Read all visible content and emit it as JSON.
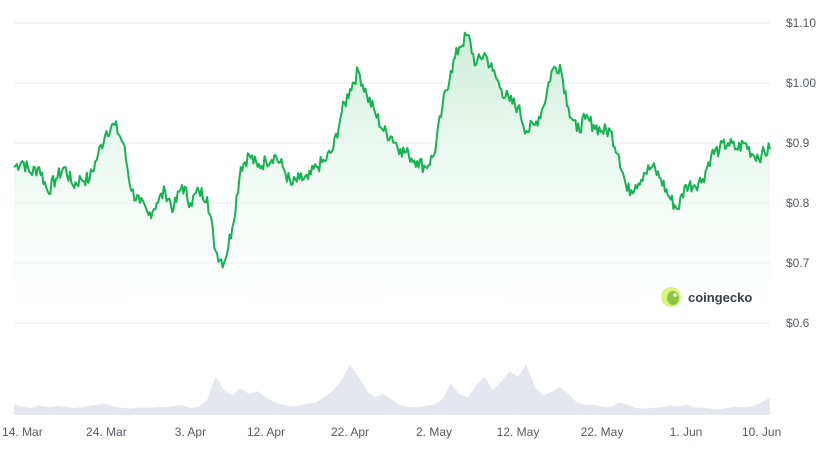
{
  "chart_data": {
    "type": "area",
    "title": "",
    "xlabel": "",
    "ylabel": "",
    "ylim": [
      0.6,
      1.1
    ],
    "grid": true,
    "y_ticks": [
      {
        "value": 1.1,
        "label": "$1.10"
      },
      {
        "value": 1.0,
        "label": "$1.00"
      },
      {
        "value": 0.9,
        "label": "$0.9"
      },
      {
        "value": 0.8,
        "label": "$0.8"
      },
      {
        "value": 0.7,
        "label": "$0.7"
      },
      {
        "value": 0.6,
        "label": "$0.6"
      }
    ],
    "x_ticks": [
      {
        "date": "2024-03-14",
        "label": "14. Mar"
      },
      {
        "date": "2024-03-24",
        "label": "24. Mar"
      },
      {
        "date": "2024-04-03",
        "label": "3. Apr"
      },
      {
        "date": "2024-04-12",
        "label": "12. Apr"
      },
      {
        "date": "2024-04-22",
        "label": "22. Apr"
      },
      {
        "date": "2024-05-02",
        "label": "2. May"
      },
      {
        "date": "2024-05-12",
        "label": "12. May"
      },
      {
        "date": "2024-05-22",
        "label": "22. May"
      },
      {
        "date": "2024-06-01",
        "label": "1. Jun"
      },
      {
        "date": "2024-06-10",
        "label": "10. Jun"
      }
    ],
    "series": [
      {
        "x": [
          "2024-03-13",
          "2024-03-14",
          "2024-03-15",
          "2024-03-16",
          "2024-03-17",
          "2024-03-18",
          "2024-03-19",
          "2024-03-20",
          "2024-03-21",
          "2024-03-22",
          "2024-03-23",
          "2024-03-24",
          "2024-03-25",
          "2024-03-26",
          "2024-03-27",
          "2024-03-28",
          "2024-03-29",
          "2024-03-30",
          "2024-03-31",
          "2024-04-01",
          "2024-04-02",
          "2024-04-03",
          "2024-04-04",
          "2024-04-05",
          "2024-04-06",
          "2024-04-07",
          "2024-04-08",
          "2024-04-09",
          "2024-04-10",
          "2024-04-11",
          "2024-04-12",
          "2024-04-13",
          "2024-04-14",
          "2024-04-15",
          "2024-04-16",
          "2024-04-17",
          "2024-04-18",
          "2024-04-19",
          "2024-04-20",
          "2024-04-21",
          "2024-04-22",
          "2024-04-23",
          "2024-04-24",
          "2024-04-25",
          "2024-04-26",
          "2024-04-27",
          "2024-04-28",
          "2024-04-29",
          "2024-04-30",
          "2024-05-01",
          "2024-05-02",
          "2024-05-03",
          "2024-05-04",
          "2024-05-05",
          "2024-05-06",
          "2024-05-07",
          "2024-05-08",
          "2024-05-09",
          "2024-05-10",
          "2024-05-11",
          "2024-05-12",
          "2024-05-13",
          "2024-05-14",
          "2024-05-15",
          "2024-05-16",
          "2024-05-17",
          "2024-05-18",
          "2024-05-19",
          "2024-05-20",
          "2024-05-21",
          "2024-05-22",
          "2024-05-23",
          "2024-05-24",
          "2024-05-25",
          "2024-05-26",
          "2024-05-27",
          "2024-05-28",
          "2024-05-29",
          "2024-05-30",
          "2024-05-31",
          "2024-06-01",
          "2024-06-02",
          "2024-06-03",
          "2024-06-04",
          "2024-06-05",
          "2024-06-06",
          "2024-06-07",
          "2024-06-08",
          "2024-06-09",
          "2024-06-10",
          "2024-06-11"
        ],
        "values": [
          0.86,
          0.87,
          0.85,
          0.86,
          0.82,
          0.84,
          0.86,
          0.83,
          0.84,
          0.84,
          0.88,
          0.92,
          0.93,
          0.9,
          0.82,
          0.8,
          0.78,
          0.8,
          0.82,
          0.79,
          0.83,
          0.8,
          0.82,
          0.81,
          0.72,
          0.7,
          0.76,
          0.86,
          0.88,
          0.86,
          0.87,
          0.88,
          0.86,
          0.83,
          0.84,
          0.84,
          0.86,
          0.87,
          0.89,
          0.95,
          0.99,
          1.02,
          0.98,
          0.95,
          0.92,
          0.91,
          0.89,
          0.88,
          0.87,
          0.86,
          0.88,
          0.96,
          1.02,
          1.06,
          1.08,
          1.03,
          1.05,
          1.02,
          0.99,
          0.97,
          0.96,
          0.92,
          0.93,
          0.96,
          1.02,
          1.03,
          0.96,
          0.92,
          0.94,
          0.93,
          0.92,
          0.92,
          0.88,
          0.82,
          0.83,
          0.85,
          0.86,
          0.84,
          0.81,
          0.79,
          0.83,
          0.83,
          0.84,
          0.88,
          0.89,
          0.9,
          0.89,
          0.9,
          0.88,
          0.88,
          0.89
        ]
      }
    ],
    "volume_values": [
      0.15,
      0.12,
      0.1,
      0.14,
      0.11,
      0.13,
      0.12,
      0.1,
      0.11,
      0.13,
      0.15,
      0.16,
      0.12,
      0.1,
      0.09,
      0.11,
      0.1,
      0.12,
      0.11,
      0.13,
      0.14,
      0.1,
      0.12,
      0.22,
      0.55,
      0.35,
      0.28,
      0.38,
      0.3,
      0.34,
      0.25,
      0.18,
      0.15,
      0.12,
      0.14,
      0.16,
      0.18,
      0.26,
      0.35,
      0.5,
      0.72,
      0.55,
      0.35,
      0.25,
      0.3,
      0.22,
      0.14,
      0.12,
      0.11,
      0.13,
      0.15,
      0.22,
      0.45,
      0.3,
      0.25,
      0.42,
      0.55,
      0.35,
      0.48,
      0.62,
      0.55,
      0.72,
      0.4,
      0.28,
      0.33,
      0.4,
      0.3,
      0.18,
      0.14,
      0.15,
      0.12,
      0.11,
      0.18,
      0.15,
      0.1,
      0.09,
      0.1,
      0.11,
      0.14,
      0.12,
      0.15,
      0.11,
      0.1,
      0.09,
      0.08,
      0.1,
      0.12,
      0.11,
      0.13,
      0.18,
      0.25
    ]
  },
  "watermark": "coingecko",
  "colors": {
    "line": "#16b353",
    "area_top": "#cdeed8",
    "volume": "#e4e7ee",
    "grid": "#ebebeb",
    "text": "#555a63",
    "logo_outer": "#d9f27a",
    "logo_inner": "#8bc53f"
  }
}
